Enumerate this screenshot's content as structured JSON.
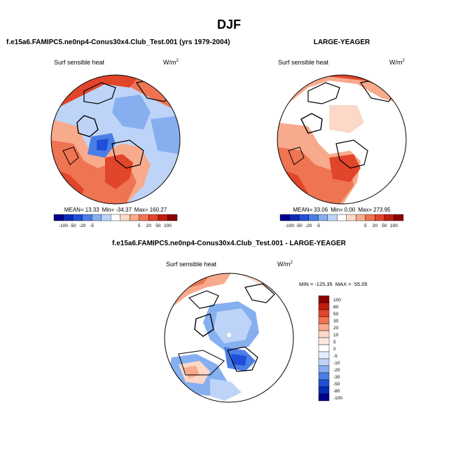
{
  "colors": {
    "scale": [
      "#00008f",
      "#0a2ab8",
      "#1f4fd6",
      "#4a7ee6",
      "#86aff0",
      "#bdd4f8",
      "#ffffff",
      "#fcd8c8",
      "#f7aa8c",
      "#ee7452",
      "#e1452a",
      "#c01d0e",
      "#8a0000"
    ],
    "land_outline": "#000000"
  },
  "chart_data": [
    {
      "type": "polar-map",
      "id": "model",
      "season": "DJF",
      "case_title": "f.e15a6.FAMIPC5.ne0np4-Conus30x4.Club_Test.001 (yrs 1979-2004)",
      "variable": "Surf sensible heat",
      "units": "W/m",
      "units_sup": "2",
      "stats": {
        "mean_label": "MEAN=",
        "mean": "13.33",
        "min_label": "Min=",
        "min": "-34.37",
        "max_label": "Max=",
        "max": "160.27"
      },
      "colorbar_ticks": [
        "-100",
        "-50",
        "-20",
        "-5",
        "5",
        "20",
        "50",
        "100"
      ]
    },
    {
      "type": "polar-map",
      "id": "obs",
      "case_title": "LARGE-YEAGER",
      "variable": "Surf sensible heat",
      "units": "W/m",
      "units_sup": "2",
      "stats": {
        "mean_label": "MEAN=",
        "mean": "33.06",
        "min_label": "Min=",
        "min": "0.00",
        "max_label": "Max=",
        "max": "273.95"
      },
      "colorbar_ticks": [
        "-100",
        "-50",
        "-20",
        "-5",
        "5",
        "20",
        "50",
        "100"
      ]
    },
    {
      "type": "polar-map-difference",
      "id": "diff",
      "case_title": "f.e15a6.FAMIPC5.ne0np4-Conus30x4.Club_Test.001 - LARGE-YEAGER",
      "variable": "Surf sensible heat",
      "units": "W/m",
      "units_sup": "2",
      "stats_text": "MIN = -125.35  MAX =  55.05",
      "colorbar_levels": [
        "100",
        "80",
        "50",
        "30",
        "20",
        "10",
        "5",
        "0",
        "-5",
        "-10",
        "-20",
        "-30",
        "-50",
        "-80",
        "-100"
      ]
    }
  ],
  "page": {
    "title": "DJF"
  }
}
